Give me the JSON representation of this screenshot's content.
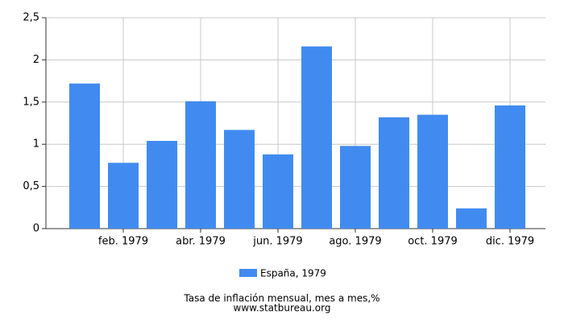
{
  "chart_data": {
    "type": "bar",
    "title": "Tasa de inflación mensual, mes a mes,%",
    "source": "www.statbureau.org",
    "categories": [
      null,
      "feb. 1979",
      null,
      "abr. 1979",
      null,
      "jun. 1979",
      null,
      "ago. 1979",
      null,
      "oct. 1979",
      null,
      "dic. 1979"
    ],
    "series": [
      {
        "name": "España, 1979",
        "color": "#418bf0",
        "values": [
          1.72,
          0.78,
          1.04,
          1.51,
          1.17,
          0.88,
          2.16,
          0.98,
          1.32,
          1.35,
          0.24,
          1.46
        ]
      }
    ],
    "ylim": [
      0,
      2.5
    ],
    "yticks": [
      0,
      {
        "value": 0.5,
        "label": "0,5"
      },
      1,
      {
        "value": 1.5,
        "label": "1,5"
      },
      2,
      {
        "value": 2.5,
        "label": "2,5"
      }
    ],
    "grid": true
  }
}
